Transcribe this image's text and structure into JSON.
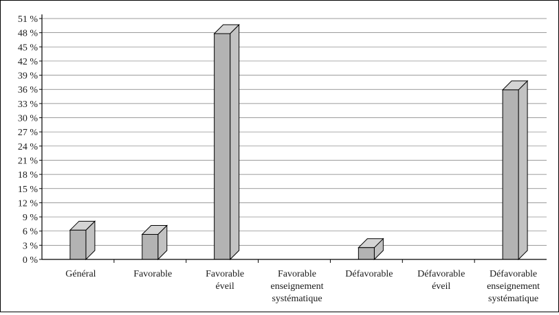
{
  "chart_data": {
    "type": "bar",
    "title": "",
    "xlabel": "",
    "ylabel": "",
    "ylim": [
      0,
      51
    ],
    "ytick_step": 3,
    "ytick_suffix": " %",
    "grid": true,
    "legend": "none",
    "categories": [
      [
        "Général"
      ],
      [
        "Favorable"
      ],
      [
        "Favorable",
        "éveil"
      ],
      [
        "Favorable",
        "enseignement",
        "systématique"
      ],
      [
        "Défavorable"
      ],
      [
        "Défavorable",
        "éveil"
      ],
      [
        "Défavorable",
        "enseignement",
        "systématique"
      ]
    ],
    "values": [
      6.2,
      5.3,
      47.8,
      0,
      2.5,
      0,
      35.9
    ],
    "colors": {
      "bar_front": "#b3b3b3",
      "bar_top": "#d4d4d4",
      "bar_side": "#c2c2c2",
      "axis": "#000000",
      "grid": "#7a7a7a"
    }
  }
}
